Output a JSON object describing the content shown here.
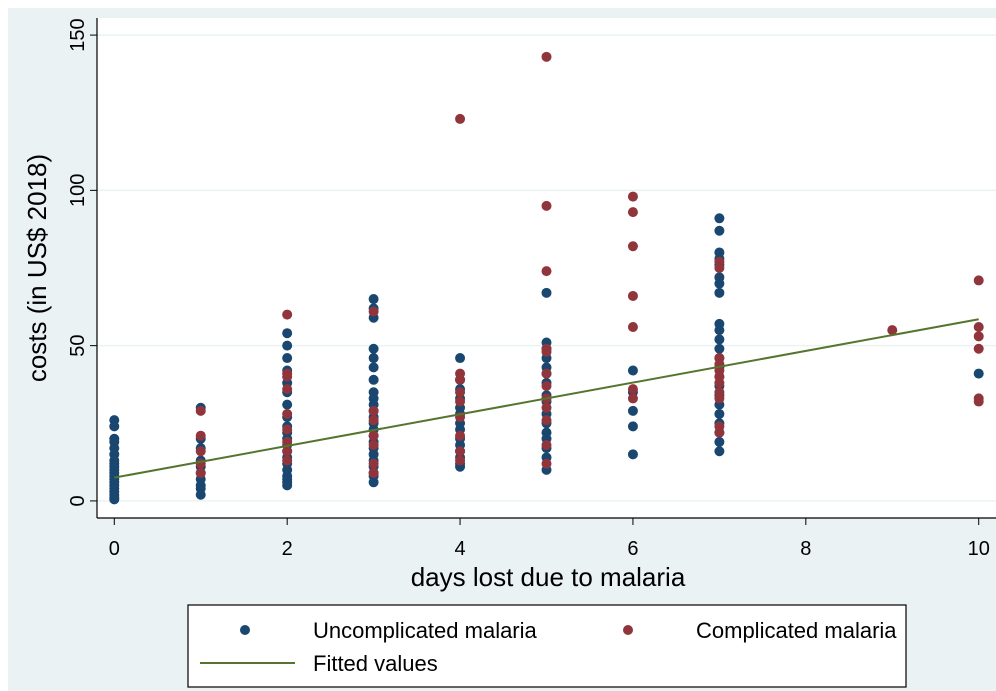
{
  "chart_data": {
    "type": "scatter",
    "xlabel": "days lost due to malaria",
    "ylabel": "costs (in US$ 2018)",
    "xlim": [
      -0.2,
      10.2
    ],
    "ylim": [
      -5.5,
      155.5
    ],
    "xticks": [
      0,
      2,
      4,
      6,
      8,
      10
    ],
    "yticks": [
      0,
      50,
      100,
      150
    ],
    "grid": true,
    "legend": "bottom",
    "series": [
      {
        "name": "Uncomplicated malaria",
        "color": "#1a476f",
        "mark": "point",
        "x": [
          0,
          0,
          0,
          0,
          0,
          0,
          0,
          0,
          0,
          0,
          0,
          0,
          0,
          0,
          0,
          0,
          0,
          0,
          0,
          0,
          1,
          1,
          1,
          1,
          1,
          1,
          1,
          1,
          1,
          1,
          2,
          2,
          2,
          2,
          2,
          2,
          2,
          2,
          2,
          2,
          2,
          2,
          2,
          2,
          2,
          2,
          2,
          2,
          2,
          2,
          3,
          3,
          3,
          3,
          3,
          3,
          3,
          3,
          3,
          3,
          3,
          3,
          3,
          3,
          3,
          3,
          3,
          3,
          3,
          3,
          3,
          3,
          3,
          4,
          4,
          4,
          4,
          4,
          4,
          4,
          4,
          4,
          4,
          4,
          4,
          4,
          4,
          5,
          5,
          5,
          5,
          5,
          5,
          5,
          5,
          5,
          5,
          5,
          5,
          5,
          5,
          5,
          5,
          6,
          6,
          6,
          6,
          6,
          7,
          7,
          7,
          7,
          7,
          7,
          7,
          7,
          7,
          7,
          7,
          7,
          7,
          7,
          7,
          7,
          7,
          7,
          7,
          7,
          7,
          7,
          7,
          10
        ],
        "values": [
          26,
          24,
          20,
          19,
          17,
          15,
          13,
          12,
          11,
          10,
          9,
          8,
          7,
          6,
          5,
          4,
          3,
          2,
          1,
          0.5,
          30,
          20,
          17,
          13,
          11,
          9,
          7,
          5,
          4,
          2,
          54,
          50,
          46,
          42,
          38,
          35,
          31,
          27,
          24,
          22,
          20,
          18,
          16,
          14,
          12,
          10,
          8,
          7,
          6,
          5,
          65,
          62,
          59,
          49,
          46,
          43,
          39,
          35,
          33,
          31,
          29,
          27,
          25,
          23,
          21,
          19,
          17,
          15,
          13,
          11,
          9,
          8,
          6,
          46,
          39,
          36,
          33,
          30,
          28,
          25,
          23,
          20,
          18,
          16,
          14,
          12,
          11,
          67,
          51,
          49,
          46,
          43,
          41,
          38,
          34,
          32,
          28,
          25,
          22,
          20,
          17,
          14,
          10,
          42,
          35,
          29,
          24,
          15,
          91,
          87,
          80,
          78,
          76,
          72,
          70,
          67,
          57,
          55,
          52,
          49,
          46,
          43,
          40,
          37,
          34,
          31,
          28,
          25,
          22,
          19,
          16,
          41
        ]
      },
      {
        "name": "Complicated malaria",
        "color": "#90353b",
        "mark": "point",
        "x": [
          1,
          1,
          1,
          1,
          1,
          2,
          2,
          2,
          2,
          2,
          2,
          2,
          2,
          2,
          3,
          3,
          3,
          3,
          3,
          3,
          3,
          4,
          4,
          4,
          4,
          4,
          4,
          4,
          4,
          4,
          5,
          5,
          5,
          5,
          5,
          5,
          5,
          5,
          5,
          5,
          5,
          5,
          6,
          6,
          6,
          6,
          6,
          6,
          6,
          7,
          7,
          7,
          7,
          7,
          7,
          7,
          7,
          7,
          7,
          7,
          9,
          10,
          10,
          10,
          10,
          10,
          10
        ],
        "values": [
          29,
          21,
          16,
          12,
          9,
          60,
          41,
          40,
          36,
          28,
          23,
          19,
          16,
          13,
          61,
          29,
          26,
          21,
          18,
          12,
          9,
          123,
          41,
          39,
          35,
          32,
          27,
          21,
          16,
          13,
          143,
          95,
          74,
          49,
          48,
          41,
          37,
          33,
          30,
          26,
          18,
          12,
          98,
          93,
          82,
          66,
          56,
          36,
          33,
          77,
          75,
          46,
          44,
          42,
          40,
          38,
          35,
          33,
          24,
          22,
          55,
          71,
          56,
          53,
          49,
          33,
          32
        ]
      },
      {
        "name": "Fitted values",
        "color": "#55752f",
        "mark": "line",
        "x": [
          0,
          10
        ],
        "values": [
          7.5,
          58.5
        ]
      }
    ]
  }
}
